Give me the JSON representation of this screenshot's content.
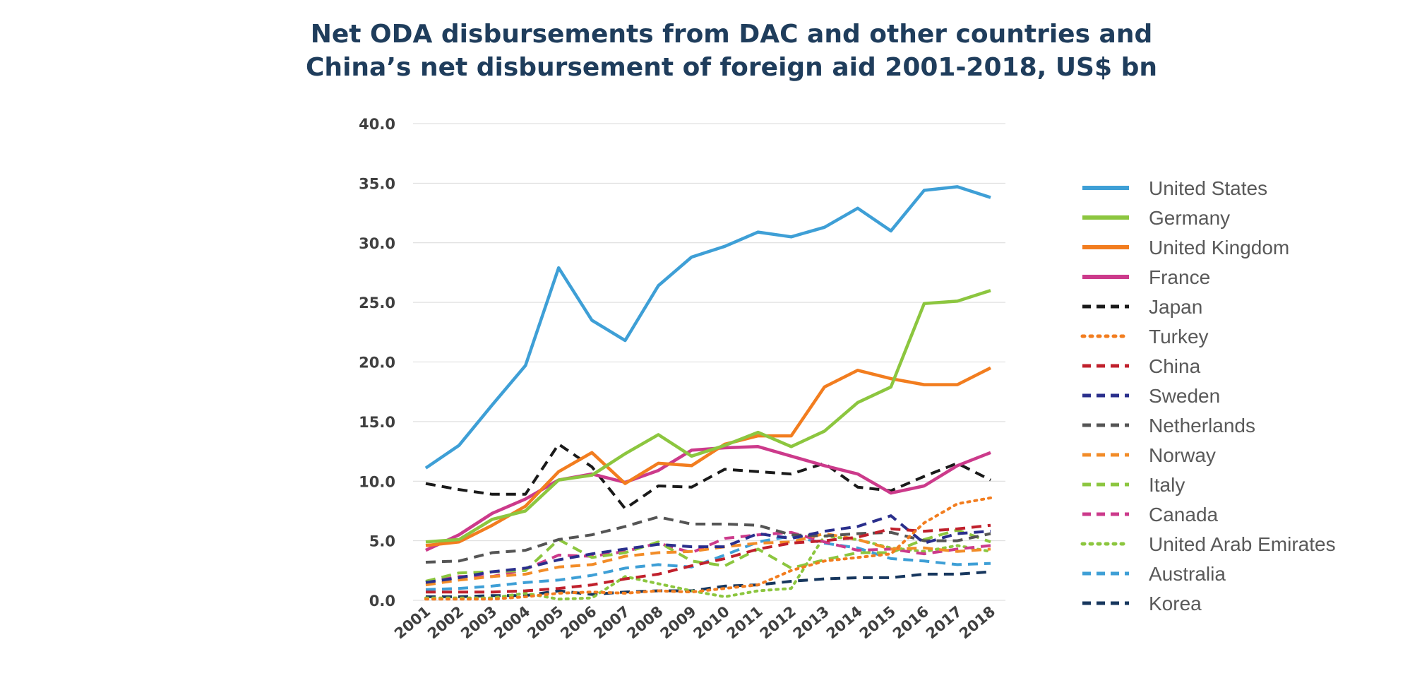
{
  "chart_data": {
    "type": "line",
    "title": [
      "Net ODA disbursements from DAC and other countries and",
      "China’s net disbursement of foreign aid 2001-2018, US$ bn"
    ],
    "xlabel": "",
    "ylabel": "",
    "ylim": [
      0,
      40
    ],
    "yticks": [
      "0.0",
      "5.0",
      "10.0",
      "15.0",
      "20.0",
      "25.0",
      "30.0",
      "35.0",
      "40.0"
    ],
    "ytick_values": [
      0,
      5,
      10,
      15,
      20,
      25,
      30,
      35,
      40
    ],
    "categories": [
      "2001",
      "2002",
      "2003",
      "2004",
      "2005",
      "2006",
      "2007",
      "2008",
      "2009",
      "2010",
      "2011",
      "2012",
      "2013",
      "2014",
      "2015",
      "2016",
      "2017",
      "2018"
    ],
    "grid": true,
    "legend_position": "right",
    "series": [
      {
        "name": "United States",
        "color": "#3e9fd6",
        "style": "solid",
        "values": [
          11.1,
          13.0,
          16.4,
          19.7,
          27.9,
          23.5,
          21.8,
          26.4,
          28.8,
          29.7,
          30.9,
          30.5,
          31.3,
          32.9,
          31.0,
          34.4,
          34.7,
          33.8
        ]
      },
      {
        "name": "Germany",
        "color": "#8cc63f",
        "style": "solid",
        "values": [
          4.9,
          5.1,
          6.8,
          7.5,
          10.1,
          10.5,
          12.3,
          13.9,
          12.1,
          13.0,
          14.1,
          12.9,
          14.2,
          16.6,
          17.9,
          24.9,
          25.1,
          26.0
        ]
      },
      {
        "name": "United Kingdom",
        "color": "#f27d1f",
        "style": "solid",
        "values": [
          4.6,
          4.9,
          6.3,
          7.9,
          10.8,
          12.4,
          9.8,
          11.5,
          11.3,
          13.1,
          13.8,
          13.8,
          17.9,
          19.3,
          18.6,
          18.1,
          18.1,
          19.5
        ]
      },
      {
        "name": "France",
        "color": "#cc3a8b",
        "style": "solid",
        "values": [
          4.2,
          5.5,
          7.3,
          8.5,
          10.1,
          10.6,
          9.9,
          10.9,
          12.6,
          12.8,
          12.9,
          12.1,
          11.3,
          10.6,
          9.0,
          9.6,
          11.3,
          12.4
        ]
      },
      {
        "name": "Japan",
        "color": "#1a1a1a",
        "style": "dash",
        "values": [
          9.8,
          9.3,
          8.9,
          8.9,
          13.1,
          11.2,
          7.7,
          9.6,
          9.5,
          11.0,
          10.8,
          10.6,
          11.5,
          9.5,
          9.2,
          10.4,
          11.5,
          10.1
        ]
      },
      {
        "name": "Turkey",
        "color": "#f27d1f",
        "style": "dot",
        "values": [
          0.1,
          0.1,
          0.1,
          0.3,
          0.6,
          0.7,
          0.6,
          0.8,
          0.7,
          1.0,
          1.3,
          2.5,
          3.3,
          3.6,
          3.9,
          6.5,
          8.1,
          8.6
        ]
      },
      {
        "name": "China",
        "color": "#c0202c",
        "style": "dash",
        "values": [
          0.7,
          0.7,
          0.7,
          0.8,
          1.0,
          1.3,
          1.8,
          2.2,
          2.9,
          3.5,
          4.3,
          4.8,
          5.0,
          5.3,
          6.0,
          5.8,
          6.0,
          6.3
        ]
      },
      {
        "name": "Sweden",
        "color": "#2a2f8c",
        "style": "dash",
        "values": [
          1.5,
          1.9,
          2.4,
          2.7,
          3.4,
          3.9,
          4.3,
          4.7,
          4.5,
          4.5,
          5.6,
          5.2,
          5.8,
          6.2,
          7.1,
          4.8,
          5.6,
          5.8
        ]
      },
      {
        "name": "Netherlands",
        "color": "#555555",
        "style": "dash",
        "values": [
          3.2,
          3.3,
          4.0,
          4.2,
          5.1,
          5.5,
          6.2,
          7.0,
          6.4,
          6.4,
          6.3,
          5.5,
          5.4,
          5.6,
          5.7,
          5.0,
          5.0,
          5.6
        ]
      },
      {
        "name": "Norway",
        "color": "#f28c28",
        "style": "dash",
        "values": [
          1.3,
          1.7,
          2.0,
          2.2,
          2.8,
          3.0,
          3.7,
          4.0,
          4.1,
          4.5,
          4.8,
          4.9,
          5.6,
          5.1,
          4.3,
          4.4,
          4.1,
          4.3
        ]
      },
      {
        "name": "Italy",
        "color": "#8cc63f",
        "style": "dash",
        "values": [
          1.6,
          2.3,
          2.4,
          2.5,
          5.1,
          3.6,
          4.0,
          4.9,
          3.3,
          2.9,
          4.3,
          2.7,
          3.4,
          4.0,
          4.0,
          5.1,
          5.9,
          4.9
        ]
      },
      {
        "name": "Canada",
        "color": "#cc3a8b",
        "style": "dash",
        "values": [
          1.5,
          2.0,
          2.0,
          2.6,
          3.8,
          3.7,
          4.1,
          4.8,
          4.0,
          5.2,
          5.5,
          5.7,
          4.9,
          4.2,
          4.3,
          3.9,
          4.3,
          4.6
        ]
      },
      {
        "name": "United Arab Emirates",
        "color": "#8cc63f",
        "style": "dot",
        "values": [
          0.2,
          0.2,
          0.2,
          0.6,
          0.1,
          0.2,
          2.0,
          1.4,
          0.8,
          0.3,
          0.8,
          1.0,
          5.4,
          5.1,
          4.4,
          4.1,
          4.6,
          4.1
        ]
      },
      {
        "name": "Australia",
        "color": "#3e9fd6",
        "style": "dash",
        "values": [
          0.9,
          1.0,
          1.2,
          1.5,
          1.7,
          2.1,
          2.7,
          3.0,
          2.8,
          3.8,
          4.9,
          5.4,
          4.8,
          4.4,
          3.5,
          3.3,
          3.0,
          3.1
        ]
      },
      {
        "name": "Korea",
        "color": "#17375e",
        "style": "dash",
        "values": [
          0.3,
          0.3,
          0.4,
          0.4,
          0.8,
          0.5,
          0.7,
          0.8,
          0.8,
          1.2,
          1.3,
          1.6,
          1.8,
          1.9,
          1.9,
          2.2,
          2.2,
          2.4
        ]
      }
    ]
  }
}
